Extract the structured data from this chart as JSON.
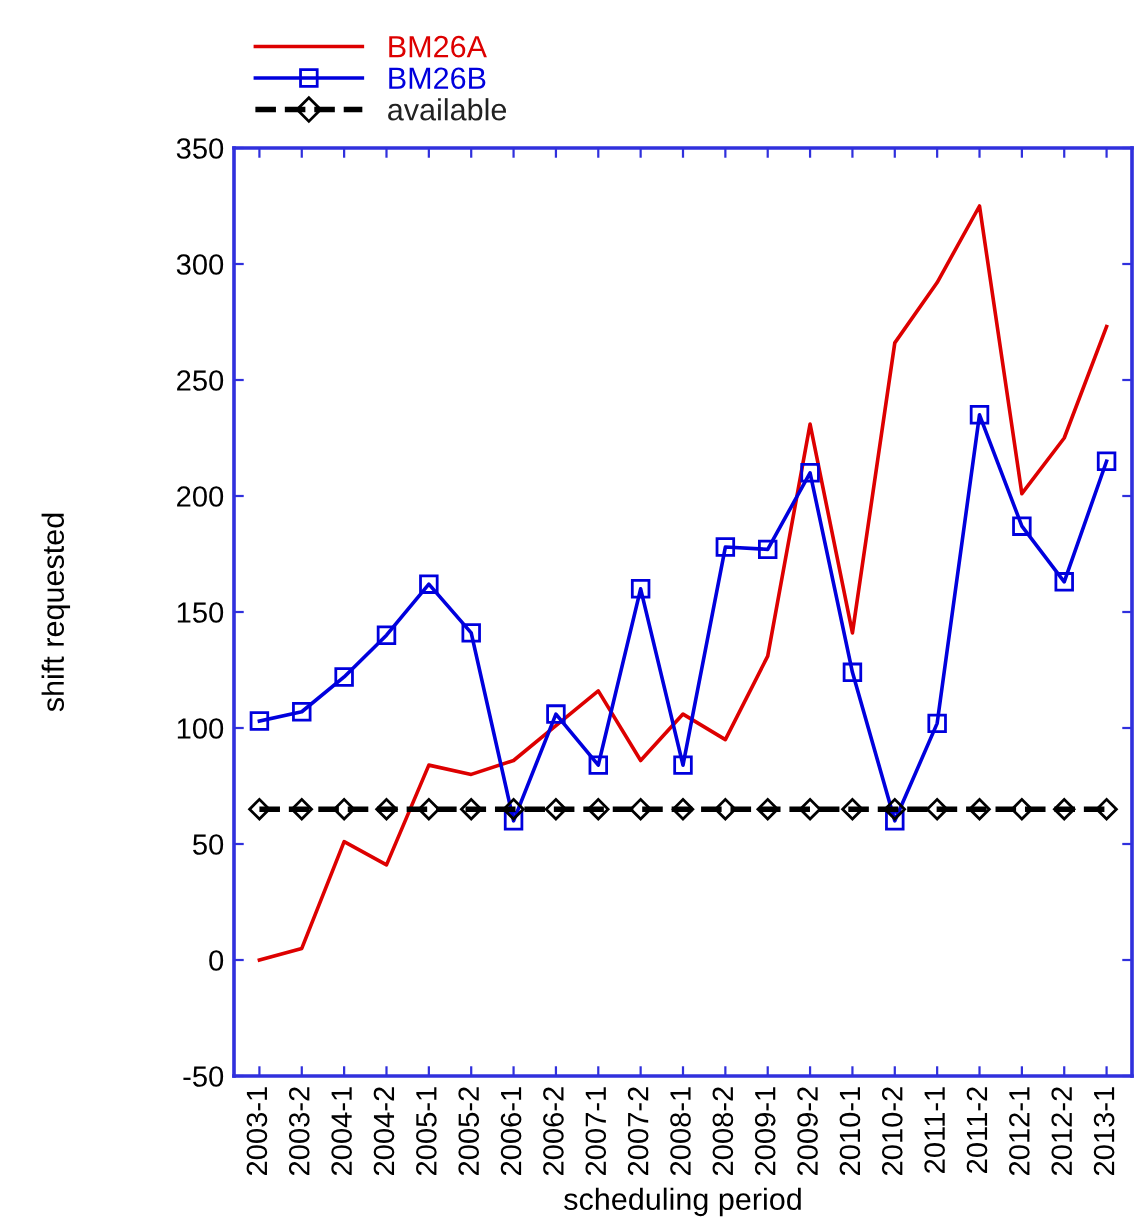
{
  "chart_data": {
    "type": "line",
    "xlabel": "scheduling period",
    "ylabel": "shift requested",
    "categories": [
      "2003-1",
      "2003-2",
      "2004-1",
      "2004-2",
      "2005-1",
      "2005-2",
      "2006-1",
      "2006-2",
      "2007-1",
      "2007-2",
      "2008-1",
      "2008-2",
      "2009-1",
      "2009-2",
      "2010-1",
      "2010-2",
      "2011-1",
      "2011-2",
      "2012-1",
      "2012-2",
      "2013-1"
    ],
    "series": [
      {
        "name": "BM26A",
        "color": "#dd0000",
        "marker": "none",
        "line_style": "solid",
        "values": [
          0,
          5,
          51,
          41,
          84,
          80,
          86,
          101,
          116,
          86,
          106,
          95,
          131,
          231,
          141,
          266,
          292,
          325,
          201,
          225,
          273
        ]
      },
      {
        "name": "BM26B",
        "color": "#0000dd",
        "marker": "square",
        "line_style": "solid",
        "values": [
          103,
          107,
          122,
          140,
          162,
          141,
          60,
          106,
          84,
          160,
          84,
          178,
          177,
          210,
          124,
          60,
          102,
          235,
          187,
          163,
          215
        ]
      },
      {
        "name": "available",
        "color": "#000000",
        "marker": "diamond",
        "line_style": "dashed",
        "values": [
          65,
          65,
          65,
          65,
          65,
          65,
          65,
          65,
          65,
          65,
          65,
          65,
          65,
          65,
          65,
          65,
          65,
          65,
          65,
          65,
          65
        ]
      }
    ],
    "ylim": [
      -50,
      350
    ],
    "yticks": [
      -50,
      0,
      50,
      100,
      150,
      200,
      250,
      300,
      350
    ],
    "grid": false,
    "legend": "top left"
  }
}
